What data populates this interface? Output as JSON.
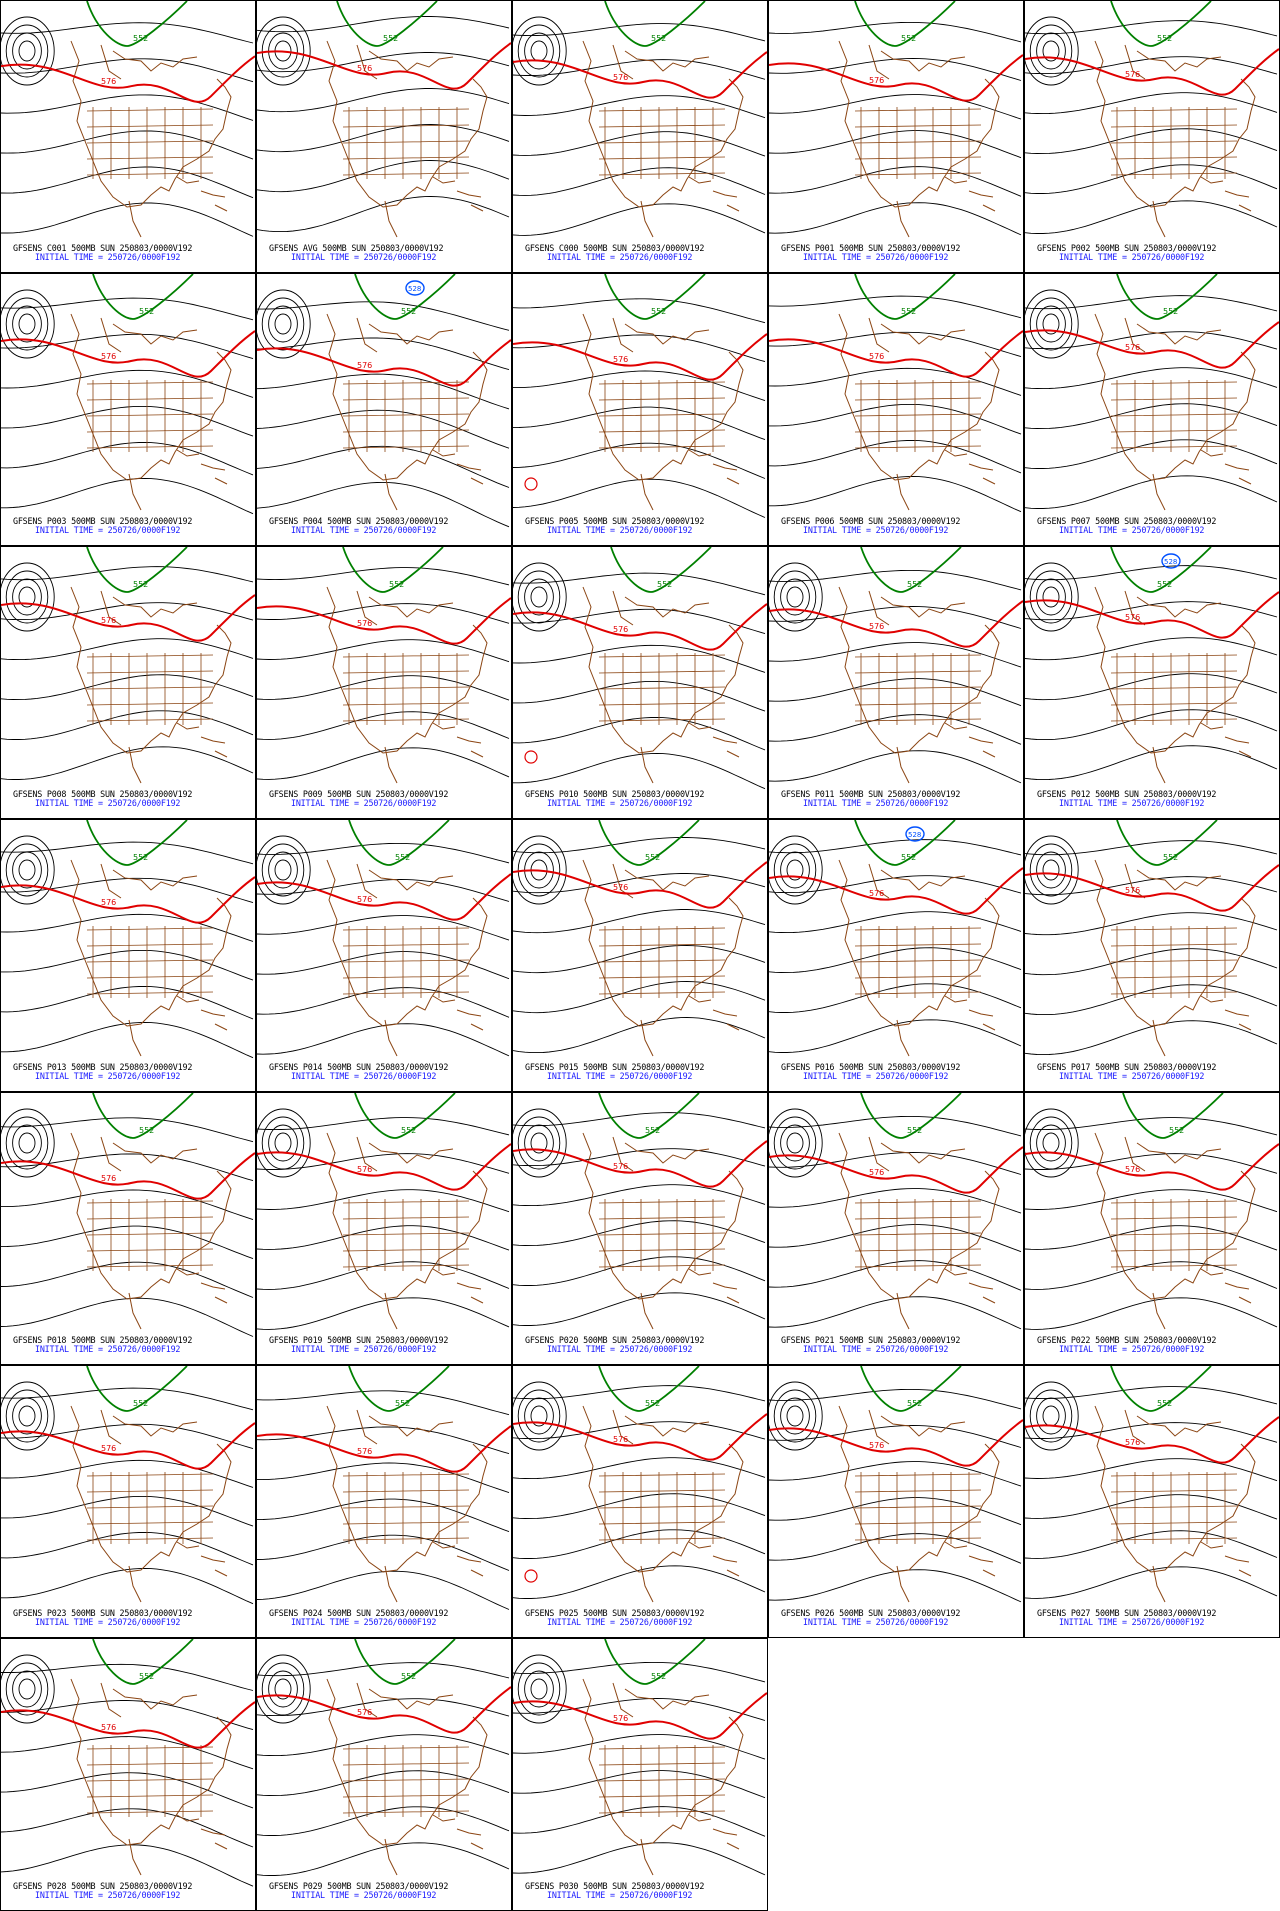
{
  "colors": {
    "coast": "#8b4513",
    "height": "#000000",
    "ctr576": "#e00000",
    "ctr552": "#008000",
    "ctr528": "#0050ff",
    "init_text": "#1a1aff"
  },
  "labels": {
    "l576": "576",
    "l552": "552",
    "l528": "528"
  },
  "panels": [
    {
      "title": "GFSENS C001 500MB SUN 250803/0000V192",
      "init": "INITIAL TIME = 250726/0000F192",
      "trough": 0.42,
      "ridge": 0.1,
      "has528": false,
      "low": true,
      "tlow": false
    },
    {
      "title": "GFSENS AVG 500MB SUN 250803/0000V192",
      "init": "INITIAL TIME = 250726/0000F192",
      "trough": 0.2,
      "ridge": 0.0,
      "has528": false,
      "low": true,
      "tlow": false
    },
    {
      "title": "GFSENS C000 500MB SUN 250803/0000V192",
      "init": "INITIAL TIME = 250726/0000F192",
      "trough": 0.35,
      "ridge": 0.2,
      "has528": false,
      "low": true,
      "tlow": false
    },
    {
      "title": "GFSENS P001 500MB SUN 250803/0000V192",
      "init": "INITIAL TIME = 250726/0000F192",
      "trough": 0.4,
      "ridge": 0.1,
      "has528": false,
      "low": false,
      "tlow": false
    },
    {
      "title": "GFSENS P002 500MB SUN 250803/0000V192",
      "init": "INITIAL TIME = 250726/0000F192",
      "trough": 0.3,
      "ridge": 0.1,
      "has528": false,
      "low": true,
      "tlow": false
    },
    {
      "title": "GFSENS P003 500MB SUN 250803/0000V192",
      "init": "INITIAL TIME = 250726/0000F192",
      "trough": 0.45,
      "ridge": 0.2,
      "has528": false,
      "low": true,
      "tlow": false
    },
    {
      "title": "GFSENS P004 500MB SUN 250803/0000V192",
      "init": "INITIAL TIME = 250726/0000F192",
      "trough": 0.6,
      "ridge": 0.3,
      "has528": true,
      "low": true,
      "tlow": false
    },
    {
      "title": "GFSENS P005 500MB SUN 250803/0000V192",
      "init": "INITIAL TIME = 250726/0000F192",
      "trough": 0.5,
      "ridge": 0.2,
      "has528": false,
      "low": false,
      "tlow": true
    },
    {
      "title": "GFSENS P006 500MB SUN 250803/0000V192",
      "init": "INITIAL TIME = 250726/0000F192",
      "trough": 0.45,
      "ridge": 0.1,
      "has528": false,
      "low": false,
      "tlow": false
    },
    {
      "title": "GFSENS P007 500MB SUN 250803/0000V192",
      "init": "INITIAL TIME = 250726/0000F192",
      "trough": 0.3,
      "ridge": 0.2,
      "has528": false,
      "low": true,
      "tlow": false
    },
    {
      "title": "GFSENS P008 500MB SUN 250803/0000V192",
      "init": "INITIAL TIME = 250726/0000F192",
      "trough": 0.3,
      "ridge": 0.1,
      "has528": false,
      "low": true,
      "tlow": false
    },
    {
      "title": "GFSENS P009 500MB SUN 250803/0000V192",
      "init": "INITIAL TIME = 250726/0000F192",
      "trough": 0.35,
      "ridge": 0.1,
      "has528": false,
      "low": false,
      "tlow": false
    },
    {
      "title": "GFSENS P010 500MB SUN 250803/0000V192",
      "init": "INITIAL TIME = 250726/0000F192",
      "trough": 0.45,
      "ridge": 0.3,
      "has528": false,
      "low": true,
      "tlow": true
    },
    {
      "title": "GFSENS P011 500MB SUN 250803/0000V192",
      "init": "INITIAL TIME = 250726/0000F192",
      "trough": 0.4,
      "ridge": 0.2,
      "has528": false,
      "low": true,
      "tlow": false
    },
    {
      "title": "GFSENS P012 500MB SUN 250803/0000V192",
      "init": "INITIAL TIME = 250726/0000F192",
      "trough": 0.25,
      "ridge": 0.1,
      "has528": true,
      "low": true,
      "tlow": false
    },
    {
      "title": "GFSENS P013 500MB SUN 250803/0000V192",
      "init": "INITIAL TIME = 250726/0000F192",
      "trough": 0.45,
      "ridge": 0.1,
      "has528": false,
      "low": true,
      "tlow": false
    },
    {
      "title": "GFSENS P014 500MB SUN 250803/0000V192",
      "init": "INITIAL TIME = 250726/0000F192",
      "trough": 0.4,
      "ridge": 0.2,
      "has528": false,
      "low": true,
      "tlow": false
    },
    {
      "title": "GFSENS P015 500MB SUN 250803/0000V192",
      "init": "INITIAL TIME = 250726/0000F192",
      "trough": 0.2,
      "ridge": 0.1,
      "has528": false,
      "low": true,
      "tlow": false
    },
    {
      "title": "GFSENS P016 500MB SUN 250803/0000V192",
      "init": "INITIAL TIME = 250726/0000F192",
      "trough": 0.3,
      "ridge": 0.1,
      "has528": true,
      "low": true,
      "tlow": false
    },
    {
      "title": "GFSENS P017 500MB SUN 250803/0000V192",
      "init": "INITIAL TIME = 250726/0000F192",
      "trough": 0.25,
      "ridge": 0.2,
      "has528": false,
      "low": true,
      "tlow": false
    },
    {
      "title": "GFSENS P018 500MB SUN 250803/0000V192",
      "init": "INITIAL TIME = 250726/0000F192",
      "trough": 0.5,
      "ridge": 0.2,
      "has528": false,
      "low": true,
      "tlow": false
    },
    {
      "title": "GFSENS P019 500MB SUN 250803/0000V192",
      "init": "INITIAL TIME = 250726/0000F192",
      "trough": 0.35,
      "ridge": 0.3,
      "has528": false,
      "low": true,
      "tlow": false
    },
    {
      "title": "GFSENS P020 500MB SUN 250803/0000V192",
      "init": "INITIAL TIME = 250726/0000F192",
      "trough": 0.3,
      "ridge": 0.1,
      "has528": false,
      "low": true,
      "tlow": false
    },
    {
      "title": "GFSENS P021 500MB SUN 250803/0000V192",
      "init": "INITIAL TIME = 250726/0000F192",
      "trough": 0.4,
      "ridge": 0.2,
      "has528": false,
      "low": true,
      "tlow": false
    },
    {
      "title": "GFSENS P022 500MB SUN 250803/0000V192",
      "init": "INITIAL TIME = 250726/0000F192",
      "trough": 0.35,
      "ridge": 0.3,
      "has528": false,
      "low": true,
      "tlow": false
    },
    {
      "title": "GFSENS P023 500MB SUN 250803/0000V192",
      "init": "INITIAL TIME = 250726/0000F192",
      "trough": 0.45,
      "ridge": 0.1,
      "has528": false,
      "low": true,
      "tlow": false
    },
    {
      "title": "GFSENS P024 500MB SUN 250803/0000V192",
      "init": "INITIAL TIME = 250726/0000F192",
      "trough": 0.5,
      "ridge": 0.2,
      "has528": false,
      "low": false,
      "tlow": false
    },
    {
      "title": "GFSENS P025 500MB SUN 250803/0000V192",
      "init": "INITIAL TIME = 250726/0000F192",
      "trough": 0.3,
      "ridge": 0.1,
      "has528": false,
      "low": true,
      "tlow": true
    },
    {
      "title": "GFSENS P026 500MB SUN 250803/0000V192",
      "init": "INITIAL TIME = 250726/0000F192",
      "trough": 0.4,
      "ridge": 0.2,
      "has528": false,
      "low": true,
      "tlow": false
    },
    {
      "title": "GFSENS P027 500MB SUN 250803/0000V192",
      "init": "INITIAL TIME = 250726/0000F192",
      "trough": 0.35,
      "ridge": 0.1,
      "has528": false,
      "low": true,
      "tlow": false
    },
    {
      "title": "GFSENS P028 500MB SUN 250803/0000V192",
      "init": "INITIAL TIME = 250726/0000F192",
      "trough": 0.55,
      "ridge": 0.2,
      "has528": false,
      "low": true,
      "tlow": false
    },
    {
      "title": "GFSENS P029 500MB SUN 250803/0000V192",
      "init": "INITIAL TIME = 250726/0000F192",
      "trough": 0.3,
      "ridge": 0.3,
      "has528": false,
      "low": true,
      "tlow": false
    },
    {
      "title": "GFSENS P030 500MB SUN 250803/0000V192",
      "init": "INITIAL TIME = 250726/0000F192",
      "trough": 0.4,
      "ridge": 0.2,
      "has528": false,
      "low": true,
      "tlow": false
    }
  ]
}
